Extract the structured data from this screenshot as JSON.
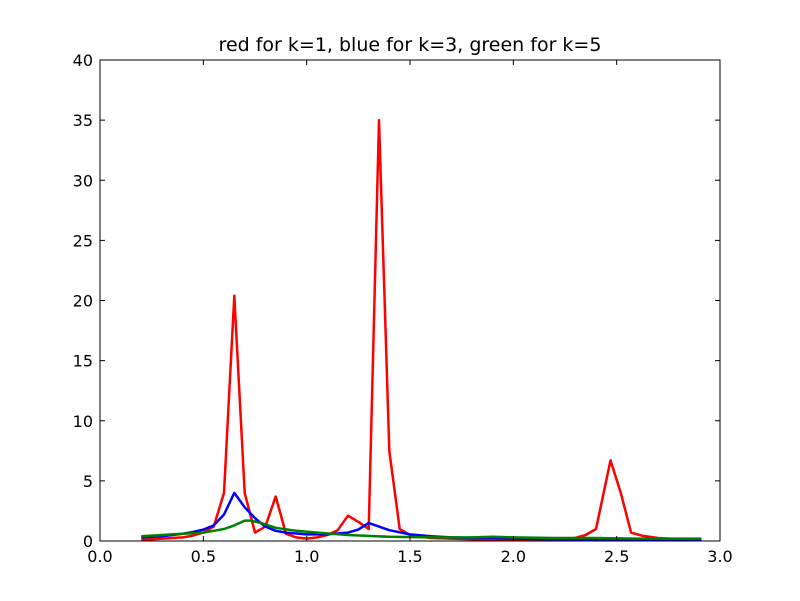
{
  "chart_data": {
    "type": "line",
    "title": "red for k=1, blue for k=3, green for k=5",
    "xlabel": "",
    "ylabel": "",
    "xlim": [
      0.0,
      3.0
    ],
    "ylim": [
      0,
      40
    ],
    "grid": false,
    "legend": "none",
    "x_ticks": [
      "0.0",
      "0.5",
      "1.0",
      "1.5",
      "2.0",
      "2.5",
      "3.0"
    ],
    "y_ticks": [
      "0",
      "5",
      "10",
      "15",
      "20",
      "25",
      "30",
      "35",
      "40"
    ],
    "series": [
      {
        "color": "#ff0000",
        "x": [
          0.2,
          0.25,
          0.3,
          0.35,
          0.4,
          0.45,
          0.5,
          0.55,
          0.6,
          0.65,
          0.7,
          0.75,
          0.8,
          0.85,
          0.9,
          0.95,
          1.0,
          1.05,
          1.1,
          1.15,
          1.2,
          1.25,
          1.3,
          1.35,
          1.4,
          1.45,
          1.5,
          1.55,
          1.6,
          1.7,
          1.8,
          1.9,
          2.0,
          2.1,
          2.2,
          2.3,
          2.35,
          2.4,
          2.47,
          2.52,
          2.57,
          2.62,
          2.7,
          2.8,
          2.91
        ],
        "y": [
          0.1,
          0.15,
          0.2,
          0.25,
          0.3,
          0.45,
          0.7,
          1.2,
          4.0,
          20.4,
          4.0,
          0.7,
          1.2,
          3.7,
          0.6,
          0.3,
          0.2,
          0.3,
          0.5,
          0.9,
          2.1,
          1.6,
          1.0,
          35.0,
          7.5,
          1.0,
          0.5,
          0.35,
          0.25,
          0.2,
          0.15,
          0.1,
          0.1,
          0.1,
          0.15,
          0.25,
          0.5,
          1.0,
          6.7,
          4.0,
          0.7,
          0.45,
          0.25,
          0.15,
          0.1
        ]
      },
      {
        "color": "#0000ff",
        "x": [
          0.2,
          0.3,
          0.4,
          0.45,
          0.5,
          0.55,
          0.6,
          0.65,
          0.7,
          0.75,
          0.8,
          0.85,
          0.9,
          1.0,
          1.1,
          1.2,
          1.25,
          1.3,
          1.35,
          1.4,
          1.5,
          1.6,
          1.7,
          1.8,
          1.9,
          2.0,
          2.2,
          2.4,
          2.6,
          2.8,
          2.91
        ],
        "y": [
          0.3,
          0.4,
          0.6,
          0.75,
          0.95,
          1.3,
          2.2,
          4.0,
          2.8,
          1.9,
          1.2,
          0.85,
          0.7,
          0.55,
          0.55,
          0.7,
          0.95,
          1.5,
          1.2,
          0.9,
          0.55,
          0.4,
          0.3,
          0.25,
          0.25,
          0.2,
          0.15,
          0.15,
          0.12,
          0.1,
          0.1
        ]
      },
      {
        "color": "#008000",
        "x": [
          0.2,
          0.3,
          0.4,
          0.5,
          0.55,
          0.6,
          0.65,
          0.7,
          0.73,
          0.78,
          0.85,
          0.95,
          1.05,
          1.2,
          1.4,
          1.6,
          1.8,
          1.9,
          2.0,
          2.2,
          2.4,
          2.6,
          2.8,
          2.91
        ],
        "y": [
          0.4,
          0.5,
          0.6,
          0.7,
          0.85,
          1.0,
          1.3,
          1.7,
          1.7,
          1.5,
          1.1,
          0.85,
          0.7,
          0.5,
          0.35,
          0.3,
          0.3,
          0.35,
          0.3,
          0.25,
          0.25,
          0.2,
          0.2,
          0.2
        ]
      }
    ]
  }
}
